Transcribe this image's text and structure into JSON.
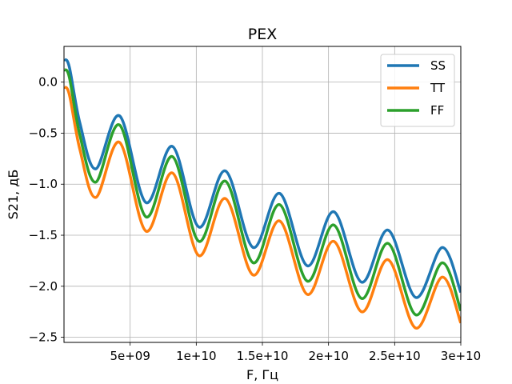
{
  "chart_data": {
    "type": "line",
    "title": "PEX",
    "xlabel": "F, Гц",
    "ylabel": "S21, дБ",
    "xlim": [
      0,
      30000000000
    ],
    "ylim": [
      -2.55,
      0.35
    ],
    "x_ticks": [
      {
        "value": 5000000000,
        "label": "5e+09"
      },
      {
        "value": 10000000000,
        "label": "1e+10"
      },
      {
        "value": 15000000000,
        "label": "1.5e+10"
      },
      {
        "value": 20000000000,
        "label": "2e+10"
      },
      {
        "value": 25000000000,
        "label": "2.5e+10"
      },
      {
        "value": 30000000000,
        "label": "3e+10"
      }
    ],
    "y_ticks": [
      {
        "value": 0.0,
        "label": "0.0"
      },
      {
        "value": -0.5,
        "label": "−0.5"
      },
      {
        "value": -1.0,
        "label": "−1.0"
      },
      {
        "value": -1.5,
        "label": "−1.5"
      },
      {
        "value": -2.0,
        "label": "−2.0"
      },
      {
        "value": -2.5,
        "label": "−2.5"
      }
    ],
    "grid": true,
    "legend_position": "top-right",
    "series": [
      {
        "name": "SS",
        "color": "#1f77b4",
        "x": [
          0,
          400000000,
          1200000000,
          2400000000,
          4200000000,
          6200000000,
          8200000000,
          10200000000,
          12200000000,
          14300000000,
          16300000000,
          18400000000,
          20400000000,
          22500000000,
          24500000000,
          26600000000,
          28600000000,
          30000000000
        ],
        "y": [
          0.22,
          0.15,
          -0.4,
          -0.85,
          -0.33,
          -1.18,
          -0.63,
          -1.42,
          -0.87,
          -1.62,
          -1.09,
          -1.8,
          -1.27,
          -1.96,
          -1.45,
          -2.11,
          -1.62,
          -2.06
        ]
      },
      {
        "name": "TT",
        "color": "#ff7f0e",
        "x": [
          0,
          400000000,
          1200000000,
          2400000000,
          4200000000,
          6200000000,
          8200000000,
          10200000000,
          12200000000,
          14300000000,
          16300000000,
          18400000000,
          20400000000,
          22500000000,
          24500000000,
          26600000000,
          28600000000,
          30000000000
        ],
        "y": [
          -0.05,
          -0.12,
          -0.66,
          -1.13,
          -0.59,
          -1.46,
          -0.89,
          -1.7,
          -1.14,
          -1.89,
          -1.36,
          -2.08,
          -1.56,
          -2.25,
          -1.74,
          -2.41,
          -1.91,
          -2.36
        ]
      },
      {
        "name": "FF",
        "color": "#2ca02c",
        "x": [
          0,
          400000000,
          1200000000,
          2400000000,
          4200000000,
          6200000000,
          8200000000,
          10200000000,
          12200000000,
          14300000000,
          16300000000,
          18400000000,
          20400000000,
          22500000000,
          24500000000,
          26600000000,
          28600000000,
          30000000000
        ],
        "y": [
          0.12,
          0.05,
          -0.52,
          -0.98,
          -0.42,
          -1.32,
          -0.73,
          -1.56,
          -0.97,
          -1.77,
          -1.2,
          -1.95,
          -1.4,
          -2.12,
          -1.58,
          -2.28,
          -1.77,
          -2.24
        ]
      }
    ]
  }
}
